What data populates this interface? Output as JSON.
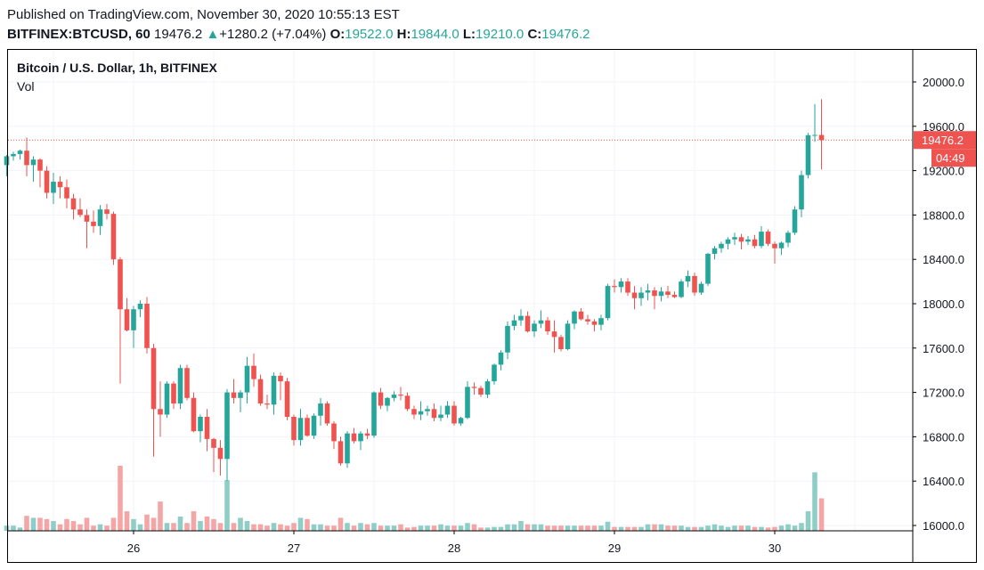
{
  "header": {
    "published": "Published on TradingView.com, November 30, 2020 10:55:13 EST",
    "symbol": "BITFINEX:BTCUSD, 60",
    "last": "19476.2",
    "change": "+1280.2 (+7.04%)",
    "o_label": "O:",
    "o_value": "19522.0",
    "h_label": "H:",
    "h_value": "19844.0",
    "l_label": "L:",
    "l_value": "19210.0",
    "c_label": "C:",
    "c_value": "19476.2"
  },
  "legend": {
    "title": "Bitcoin / U.S. Dollar, 1h, BITFINEX",
    "volume": "Vol"
  },
  "price_badge": {
    "value": "19476.2",
    "countdown": "04:49"
  },
  "colors": {
    "up": "#26a69a",
    "down": "#ef5350",
    "up_vol": "#8fcec7",
    "down_vol": "#f4a6a6",
    "grid": "#f0f3fa",
    "price_line": "#ef5350"
  },
  "chart_data": {
    "type": "candlestick",
    "title": "Bitcoin / U.S. Dollar, 1h, BITFINEX",
    "y_ticks": [
      16000,
      16400,
      16800,
      17200,
      17600,
      18000,
      18400,
      18800,
      19200,
      19600,
      20000
    ],
    "y_tick_labels": [
      "16000.0",
      "16400.0",
      "16800.0",
      "17200.0",
      "17600.0",
      "18000.0",
      "18400.0",
      "18800.0",
      "19200.0",
      "19600.0",
      "20000.0"
    ],
    "ylim": [
      15990,
      20280
    ],
    "x_ticks": [
      {
        "t": 0,
        "label": "26"
      },
      {
        "t": 24,
        "label": "27"
      },
      {
        "t": 48,
        "label": "28"
      },
      {
        "t": 72,
        "label": "29"
      },
      {
        "t": 96,
        "label": "30"
      }
    ],
    "grid": true,
    "last_price": 19476.2,
    "start_t": -19,
    "ohlc": [
      [
        19250,
        19340,
        19150,
        19330
      ],
      [
        19330,
        19370,
        19290,
        19350
      ],
      [
        19350,
        19390,
        19300,
        19380
      ],
      [
        19380,
        19500,
        19150,
        19250
      ],
      [
        19250,
        19330,
        19100,
        19300
      ],
      [
        19300,
        19310,
        19050,
        19200
      ],
      [
        19200,
        19240,
        18950,
        19000
      ],
      [
        19000,
        19180,
        18900,
        19100
      ],
      [
        19100,
        19150,
        18950,
        19050
      ],
      [
        19050,
        19120,
        18860,
        18950
      ],
      [
        18950,
        18990,
        18760,
        18850
      ],
      [
        18850,
        18950,
        18780,
        18800
      ],
      [
        18800,
        18850,
        18500,
        18740
      ],
      [
        18740,
        18840,
        18640,
        18700
      ],
      [
        18700,
        18890,
        18620,
        18850
      ],
      [
        18850,
        18900,
        18760,
        18810
      ],
      [
        18810,
        18830,
        18350,
        18400
      ],
      [
        18400,
        18420,
        17280,
        17950
      ],
      [
        17950,
        18050,
        17750,
        17760
      ],
      [
        17760,
        17980,
        17600,
        17950
      ],
      [
        17950,
        18030,
        17880,
        18000
      ],
      [
        18000,
        18060,
        17550,
        17600
      ],
      [
        17600,
        17640,
        16620,
        17050
      ],
      [
        17050,
        17300,
        16800,
        17000
      ],
      [
        17000,
        17300,
        16970,
        17280
      ],
      [
        17280,
        17300,
        17050,
        17100
      ],
      [
        17100,
        17450,
        17050,
        17420
      ],
      [
        17420,
        17450,
        17130,
        17150
      ],
      [
        17150,
        17200,
        16840,
        16850
      ],
      [
        16850,
        17000,
        16750,
        16980
      ],
      [
        16980,
        17050,
        16670,
        16780
      ],
      [
        16780,
        16790,
        16480,
        16700
      ],
      [
        16700,
        16770,
        16450,
        16600
      ],
      [
        16600,
        17230,
        16400,
        17200
      ],
      [
        17200,
        17320,
        17100,
        17150
      ],
      [
        17150,
        17220,
        17020,
        17200
      ],
      [
        17200,
        17520,
        17100,
        17440
      ],
      [
        17440,
        17550,
        17250,
        17320
      ],
      [
        17320,
        17360,
        17080,
        17100
      ],
      [
        17100,
        17180,
        17050,
        17090
      ],
      [
        17090,
        17380,
        17000,
        17350
      ],
      [
        17350,
        17380,
        17130,
        17300
      ],
      [
        17300,
        17330,
        16950,
        16980
      ],
      [
        16980,
        17000,
        16720,
        16770
      ],
      [
        16770,
        17050,
        16720,
        16970
      ],
      [
        16970,
        17000,
        16800,
        16810
      ],
      [
        16810,
        17010,
        16780,
        16990
      ],
      [
        16990,
        17150,
        16900,
        17100
      ],
      [
        17100,
        17120,
        16900,
        16920
      ],
      [
        16920,
        16940,
        16690,
        16760
      ],
      [
        16760,
        16800,
        16540,
        16560
      ],
      [
        16560,
        16850,
        16520,
        16830
      ],
      [
        16830,
        16880,
        16740,
        16760
      ],
      [
        16760,
        16850,
        16680,
        16830
      ],
      [
        16830,
        16870,
        16780,
        16810
      ],
      [
        16810,
        17210,
        16790,
        17200
      ],
      [
        17200,
        17240,
        17050,
        17080
      ],
      [
        17080,
        17160,
        17030,
        17150
      ],
      [
        17150,
        17210,
        17120,
        17180
      ],
      [
        17180,
        17250,
        17130,
        17170
      ],
      [
        17170,
        17200,
        17030,
        17050
      ],
      [
        17050,
        17080,
        16960,
        17000
      ],
      [
        17000,
        17120,
        16950,
        17030
      ],
      [
        17030,
        17080,
        16990,
        17050
      ],
      [
        17050,
        17100,
        16940,
        16970
      ],
      [
        16970,
        17080,
        16940,
        17000
      ],
      [
        17000,
        17120,
        16970,
        17080
      ],
      [
        17080,
        17120,
        16900,
        16920
      ],
      [
        16920,
        16980,
        16900,
        16970
      ],
      [
        16970,
        17300,
        16960,
        17250
      ],
      [
        17250,
        17290,
        17180,
        17240
      ],
      [
        17240,
        17260,
        17160,
        17180
      ],
      [
        17180,
        17320,
        17150,
        17300
      ],
      [
        17300,
        17460,
        17270,
        17450
      ],
      [
        17450,
        17580,
        17400,
        17560
      ],
      [
        17560,
        17840,
        17500,
        17800
      ],
      [
        17800,
        17900,
        17760,
        17850
      ],
      [
        17850,
        17950,
        17800,
        17890
      ],
      [
        17890,
        17930,
        17740,
        17750
      ],
      [
        17750,
        17850,
        17700,
        17820
      ],
      [
        17820,
        17940,
        17780,
        17850
      ],
      [
        17850,
        17880,
        17720,
        17750
      ],
      [
        17750,
        17850,
        17560,
        17700
      ],
      [
        17700,
        17720,
        17570,
        17590
      ],
      [
        17590,
        17850,
        17580,
        17820
      ],
      [
        17820,
        17940,
        17770,
        17930
      ],
      [
        17930,
        17960,
        17850,
        17860
      ],
      [
        17860,
        17900,
        17810,
        17840
      ],
      [
        17840,
        17860,
        17750,
        17810
      ],
      [
        17810,
        17900,
        17760,
        17870
      ],
      [
        17870,
        18180,
        17850,
        18160
      ],
      [
        18160,
        18220,
        18100,
        18150
      ],
      [
        18150,
        18230,
        18100,
        18200
      ],
      [
        18200,
        18230,
        18070,
        18100
      ],
      [
        18100,
        18160,
        17950,
        18050
      ],
      [
        18050,
        18150,
        17980,
        18100
      ],
      [
        18100,
        18180,
        18030,
        18120
      ],
      [
        18120,
        18150,
        17950,
        18070
      ],
      [
        18070,
        18150,
        18020,
        18110
      ],
      [
        18110,
        18160,
        18050,
        18080
      ],
      [
        18080,
        18110,
        18050,
        18060
      ],
      [
        18060,
        18220,
        18050,
        18200
      ],
      [
        18200,
        18300,
        18150,
        18250
      ],
      [
        18250,
        18280,
        18070,
        18100
      ],
      [
        18100,
        18200,
        18080,
        18180
      ],
      [
        18180,
        18460,
        18160,
        18450
      ],
      [
        18450,
        18520,
        18400,
        18500
      ],
      [
        18500,
        18560,
        18460,
        18540
      ],
      [
        18540,
        18600,
        18490,
        18580
      ],
      [
        18580,
        18640,
        18530,
        18600
      ],
      [
        18600,
        18630,
        18490,
        18560
      ],
      [
        18560,
        18610,
        18530,
        18580
      ],
      [
        18580,
        18620,
        18500,
        18520
      ],
      [
        18520,
        18700,
        18500,
        18650
      ],
      [
        18650,
        18670,
        18520,
        18540
      ],
      [
        18540,
        18560,
        18360,
        18500
      ],
      [
        18500,
        18560,
        18440,
        18550
      ],
      [
        18550,
        18660,
        18510,
        18640
      ],
      [
        18640,
        18880,
        18620,
        18850
      ],
      [
        18850,
        19200,
        18780,
        19160
      ],
      [
        19160,
        19540,
        19130,
        19520
      ],
      [
        19520,
        19800,
        19460,
        19522
      ],
      [
        19522,
        19844,
        19210,
        19476.2
      ]
    ],
    "volume_scale_max": 100,
    "volumes": [
      8,
      8,
      5,
      23,
      20,
      20,
      18,
      15,
      10,
      18,
      15,
      10,
      20,
      8,
      10,
      8,
      20,
      100,
      30,
      18,
      10,
      25,
      20,
      45,
      12,
      12,
      22,
      12,
      30,
      15,
      22,
      18,
      12,
      78,
      12,
      20,
      15,
      10,
      10,
      8,
      12,
      10,
      8,
      12,
      20,
      18,
      10,
      10,
      8,
      8,
      20,
      12,
      8,
      12,
      10,
      12,
      8,
      8,
      8,
      10,
      5,
      6,
      8,
      8,
      8,
      10,
      8,
      8,
      8,
      12,
      10,
      5,
      5,
      6,
      6,
      10,
      10,
      15,
      10,
      10,
      10,
      8,
      8,
      8,
      8,
      8,
      8,
      8,
      8,
      8,
      14,
      6,
      6,
      6,
      6,
      6,
      10,
      10,
      10,
      8,
      8,
      8,
      6,
      6,
      6,
      8,
      10,
      8,
      6,
      8,
      8,
      8,
      6,
      6,
      5,
      6,
      8,
      10,
      8,
      12,
      30,
      90,
      50
    ]
  }
}
